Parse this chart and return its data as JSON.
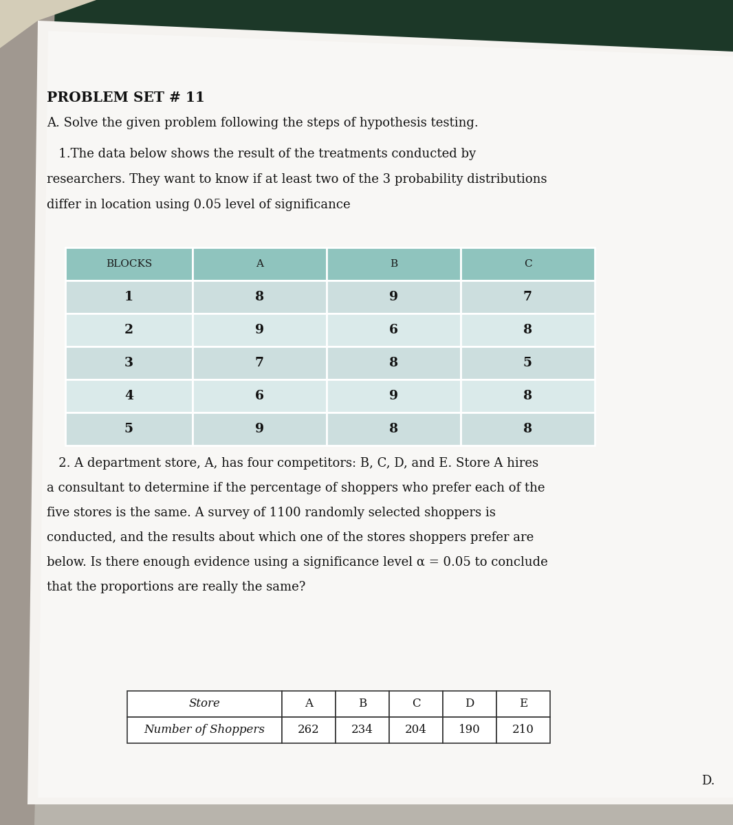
{
  "title": "PROBLEM SET # 11",
  "section_a": "A. Solve the given problem following the steps of hypothesis testing.",
  "problem1_lines": [
    "   1.The data below shows the result of the treatments conducted by",
    "researchers. They want to know if at least two of the 3 probability distributions",
    "differ in location using 0.05 level of significance"
  ],
  "table1_headers": [
    "BLOCKS",
    "A",
    "B",
    "C"
  ],
  "table1_header_bg": "#8fc4be",
  "table1_row_bg_odd": "#ccdede",
  "table1_row_bg_even": "#daeaea",
  "table1_data": [
    [
      "1",
      "8",
      "9",
      "7"
    ],
    [
      "2",
      "9",
      "6",
      "8"
    ],
    [
      "3",
      "7",
      "8",
      "5"
    ],
    [
      "4",
      "6",
      "9",
      "8"
    ],
    [
      "5",
      "9",
      "8",
      "8"
    ]
  ],
  "problem2_lines": [
    "   2. A department store, A, has four competitors: B, C, D, and E. Store A hires",
    "a consultant to determine if the percentage of shoppers who prefer each of the",
    "five stores is the same. A survey of 1100 randomly selected shoppers is",
    "conducted, and the results about which one of the stores shoppers prefer are",
    "below. Is there enough evidence using a significance level α = 0.05 to conclude",
    "that the proportions are really the same?"
  ],
  "table2_col1_header": "Store",
  "table2_col1_data": "Number of Shoppers",
  "table2_store_headers": [
    "A",
    "B",
    "C",
    "D",
    "E"
  ],
  "table2_store_data": [
    "262",
    "234",
    "204",
    "190",
    "210"
  ],
  "footer": "D.",
  "photo_bg_top": "#2d4a38",
  "photo_bg_left": "#c8c0b0",
  "page_bg": "#f2f0ed"
}
